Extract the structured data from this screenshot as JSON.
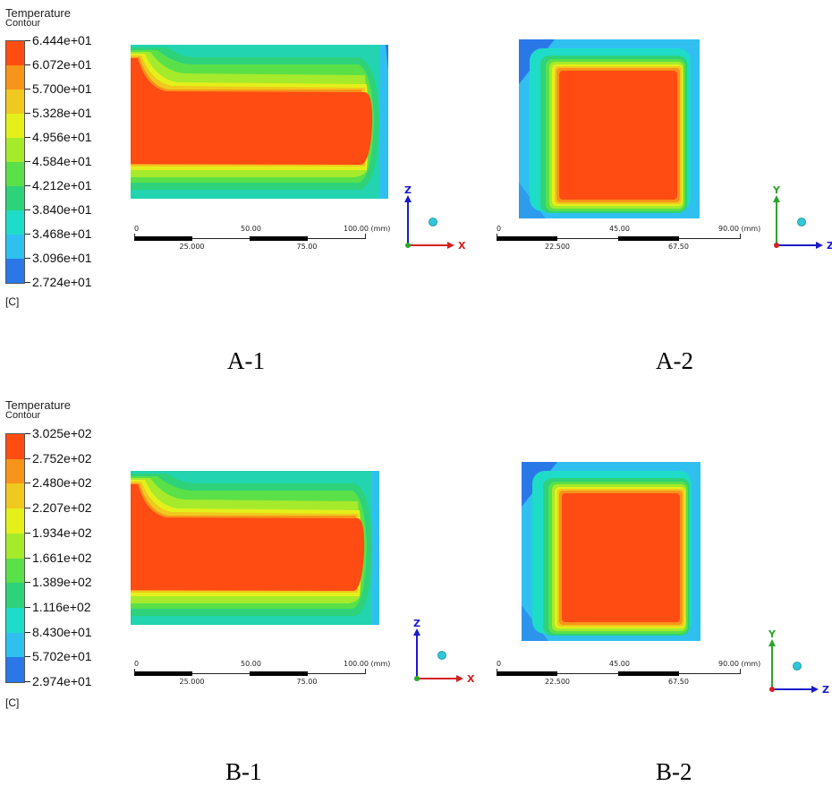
{
  "panels": [
    {
      "id": "A",
      "legend": {
        "title": "Temperature",
        "subtitle": "Contour",
        "unit": "[C]",
        "labels": [
          "6.444e+01",
          "6.072e+01",
          "5.700e+01",
          "5.328e+01",
          "4.956e+01",
          "4.584e+01",
          "4.212e+01",
          "3.840e+01",
          "3.468e+01",
          "3.096e+01",
          "2.724e+01"
        ]
      },
      "views": [
        {
          "caption": "A-1",
          "scale": {
            "top_labels": [
              "0",
              "50.00",
              "100.00 (mm)"
            ],
            "bottom_labels": [
              "25.000",
              "75.00"
            ]
          },
          "axes": {
            "vertical": "Z",
            "horizontal": "X",
            "vertical_color": "#1a1acc",
            "horizontal_color": "#d42020"
          }
        },
        {
          "caption": "A-2",
          "scale": {
            "top_labels": [
              "0",
              "45.00",
              "90.00 (mm)"
            ],
            "bottom_labels": [
              "22.500",
              "67.50"
            ]
          },
          "axes": {
            "vertical": "Y",
            "horizontal": "Z",
            "vertical_color": "#2aa52a",
            "horizontal_color": "#1a1acc"
          }
        }
      ]
    },
    {
      "id": "B",
      "legend": {
        "title": "Temperature",
        "subtitle": "Contour",
        "unit": "[C]",
        "labels": [
          "3.025e+02",
          "2.752e+02",
          "2.480e+02",
          "2.207e+02",
          "1.934e+02",
          "1.661e+02",
          "1.389e+02",
          "1.116e+02",
          "8.430e+01",
          "5.702e+01",
          "2.974e+01"
        ]
      },
      "views": [
        {
          "caption": "B-1",
          "scale": {
            "top_labels": [
              "0",
              "50.00",
              "100.00 (mm)"
            ],
            "bottom_labels": [
              "25.000",
              "75.00"
            ]
          },
          "axes": {
            "vertical": "Z",
            "horizontal": "X",
            "vertical_color": "#1a1acc",
            "horizontal_color": "#d42020"
          }
        },
        {
          "caption": "B-2",
          "scale": {
            "top_labels": [
              "0",
              "45.00",
              "90.00 (mm)"
            ],
            "bottom_labels": [
              "22.500",
              "67.50"
            ]
          },
          "axes": {
            "vertical": "Y",
            "horizontal": "Z",
            "vertical_color": "#2aa52a",
            "horizontal_color": "#1a1acc"
          }
        }
      ]
    }
  ],
  "colormap": [
    "#ff4c12",
    "#f7941a",
    "#f0c81e",
    "#e4f01a",
    "#a6ea2c",
    "#5ae048",
    "#2ed27a",
    "#1fdcc8",
    "#30c0f0",
    "#2a78e8",
    "#1c3ee0"
  ]
}
